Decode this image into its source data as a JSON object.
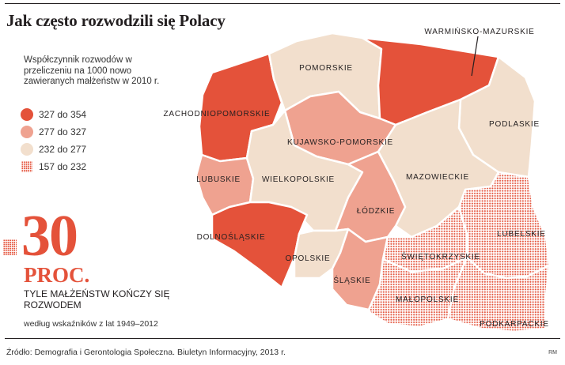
{
  "title": "Jak często rozwodzili się Polacy",
  "legend": {
    "description": "Współczynnik rozwodów w przeliczeniu na 1000 nowo zawieranych małżeństw w 2010 r.",
    "classes": [
      {
        "label": "327 do 354",
        "color": "#e4523a"
      },
      {
        "label": "277 do 327",
        "color": "#efa290"
      },
      {
        "label": "232 do 277",
        "color": "#f2dfcd"
      },
      {
        "label": "157 do 232",
        "color": "#e4523a",
        "pattern": "dotted"
      }
    ]
  },
  "statistic": {
    "value": "30",
    "unit": "PROC.",
    "text": "TYLE MAŁŻEŃSTW KOŃCZY SIĘ ROZWODEM",
    "note": "według wskaźników z lat 1949–2012"
  },
  "map": {
    "regions": [
      {
        "name": "ZACHODNIOPOMORSKIE",
        "class": "327 do 354"
      },
      {
        "name": "POMORSKIE",
        "class": "232 do 277"
      },
      {
        "name": "WARMIŃSKO-MAZURSKIE",
        "class": "327 do 354"
      },
      {
        "name": "PODLASKIE",
        "class": "232 do 277"
      },
      {
        "name": "KUJAWSKO-POMORSKIE",
        "class": "277 do 327"
      },
      {
        "name": "LUBUSKIE",
        "class": "277 do 327"
      },
      {
        "name": "WIELKOPOLSKIE",
        "class": "232 do 277"
      },
      {
        "name": "MAZOWIECKIE",
        "class": "232 do 277"
      },
      {
        "name": "ŁÓDZKIE",
        "class": "277 do 327"
      },
      {
        "name": "DOLNOŚLĄSKIE",
        "class": "327 do 354"
      },
      {
        "name": "OPOLSKIE",
        "class": "232 do 277"
      },
      {
        "name": "ŚLĄSKIE",
        "class": "277 do 327"
      },
      {
        "name": "ŚWIĘTOKRZYSKIE",
        "class": "157 do 232"
      },
      {
        "name": "LUBELSKIE",
        "class": "157 do 232"
      },
      {
        "name": "MAŁOPOLSKIE",
        "class": "157 do 232"
      },
      {
        "name": "PODKARPACKIE",
        "class": "157 do 232"
      }
    ]
  },
  "source": "Źródło: Demografia i Gerontologia Społeczna. Biuletyn Informacyjny, 2013 r.",
  "credit": "RM"
}
